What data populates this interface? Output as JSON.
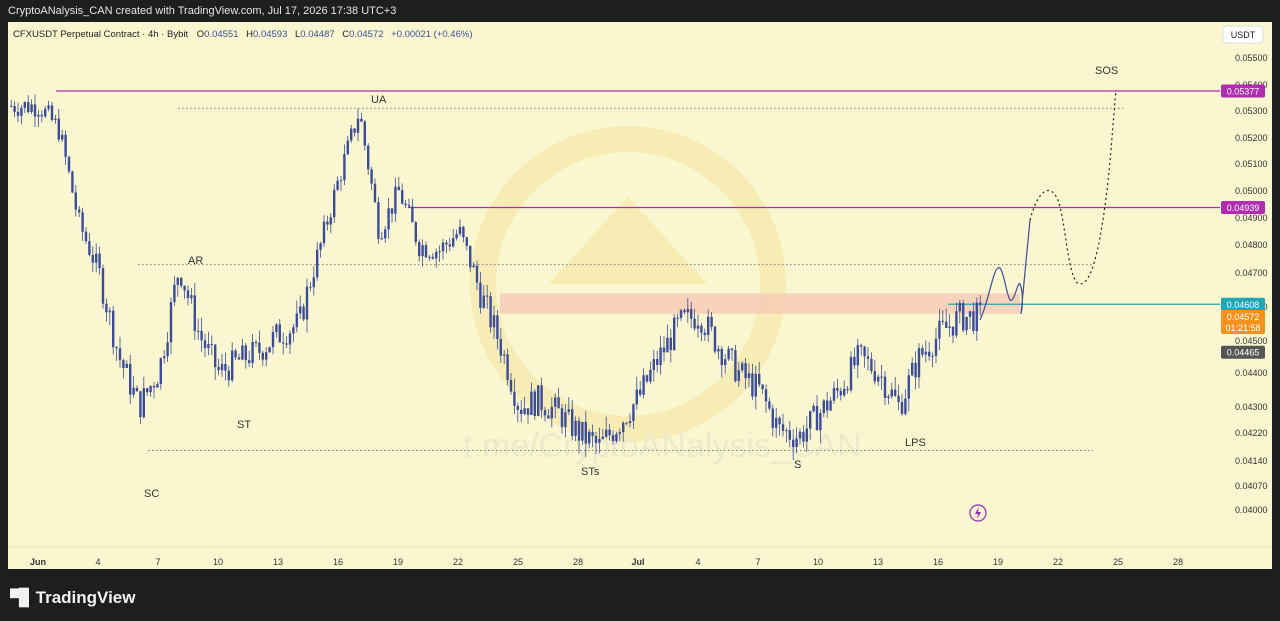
{
  "header": {
    "credit": "CryptoANalysis_CAN created with TradingView.com, Jul 17, 2026 17:38 UTC+3"
  },
  "symbol_line": {
    "name": "CFXUSDT Perpetual Contract · 4h · Bybit",
    "o_label": "O",
    "o_value": "0.04551",
    "h_label": "H",
    "h_value": "0.04593",
    "l_label": "L",
    "l_value": "0.04487",
    "c_label": "C",
    "c_value": "0.04572",
    "change": "+0.00021 (+0.46%)"
  },
  "currency_button": "USDT",
  "watermark": "t.me/CryptoANalysis_CAN",
  "footer": {
    "logo_text": "TradingView"
  },
  "colors": {
    "background": "#faf6d0",
    "candles": "#3b4d9a",
    "magenta_level": "#b02cb0",
    "cyan_level": "#22a6b3",
    "price_tag": "#f5921e",
    "zone": "#f7c7b4"
  },
  "chart_data": {
    "type": "candlestick",
    "x_ticks": [
      "Jun",
      "4",
      "7",
      "10",
      "13",
      "16",
      "19",
      "22",
      "25",
      "28",
      "Jul",
      "4",
      "7",
      "10",
      "13",
      "16",
      "19",
      "22",
      "25",
      "28"
    ],
    "y_ticks": [
      "0.05500",
      "0.05400",
      "0.05300",
      "0.05200",
      "0.05100",
      "0.05000",
      "0.04900",
      "0.04800",
      "0.04700",
      "0.04600",
      "0.04500",
      "0.04400",
      "0.04300",
      "0.04220",
      "0.04140",
      "0.04070",
      "0.04000"
    ],
    "price_tags": [
      {
        "value": "0.05377",
        "color": "#b02cb0"
      },
      {
        "value": "0.04939",
        "color": "#b02cb0"
      },
      {
        "value": "0.04608",
        "color": "#22a6b3"
      },
      {
        "value": "0.04572",
        "color": "#f5921e",
        "sub": "01:21:58"
      },
      {
        "value": "0.04465",
        "color": "#555555"
      }
    ],
    "levels": [
      {
        "price": 0.05377,
        "style": "solid",
        "color": "#b02cb0"
      },
      {
        "price": 0.04939,
        "style": "solid",
        "color": "#b02cb0"
      },
      {
        "price": 0.04608,
        "style": "solid",
        "color": "#22a6b3"
      },
      {
        "price": 0.0531,
        "style": "dotted",
        "color": "#777777"
      },
      {
        "price": 0.0473,
        "style": "dotted",
        "color": "#777777"
      },
      {
        "price": 0.0417,
        "style": "dotted",
        "color": "#777777"
      }
    ],
    "zone": {
      "low": 0.0458,
      "high": 0.0464
    },
    "annotations": [
      "SC",
      "AR",
      "ST",
      "UA",
      "STs",
      "S",
      "LPS",
      "SOS"
    ],
    "series": [
      {
        "date": "Jun 1",
        "price": 0.0532
      },
      {
        "date": "Jun 2",
        "price": 0.0523
      },
      {
        "date": "Jun 3",
        "price": 0.0488
      },
      {
        "date": "Jun 4",
        "price": 0.047
      },
      {
        "date": "Jun 5",
        "price": 0.0445
      },
      {
        "date": "Jun 6",
        "price": 0.043
      },
      {
        "date": "Jun 7",
        "price": 0.0441
      },
      {
        "date": "Jun 8",
        "price": 0.0472
      },
      {
        "date": "Jun 9",
        "price": 0.0452
      },
      {
        "date": "Jun 10",
        "price": 0.044
      },
      {
        "date": "Jun 11",
        "price": 0.0444
      },
      {
        "date": "Jun 12",
        "price": 0.0447
      },
      {
        "date": "Jun 13",
        "price": 0.0452
      },
      {
        "date": "Jun 14",
        "price": 0.0455
      },
      {
        "date": "Jun 15",
        "price": 0.0478
      },
      {
        "date": "Jun 16",
        "price": 0.0505
      },
      {
        "date": "Jun 17",
        "price": 0.053
      },
      {
        "date": "Jun 18",
        "price": 0.0485
      },
      {
        "date": "Jun 19",
        "price": 0.05
      },
      {
        "date": "Jun 20",
        "price": 0.048
      },
      {
        "date": "Jun 21",
        "price": 0.0478
      },
      {
        "date": "Jun 22",
        "price": 0.0485
      },
      {
        "date": "Jun 23",
        "price": 0.0465
      },
      {
        "date": "Jun 24",
        "price": 0.045
      },
      {
        "date": "Jun 25",
        "price": 0.043
      },
      {
        "date": "Jun 26",
        "price": 0.0432
      },
      {
        "date": "Jun 27",
        "price": 0.0428
      },
      {
        "date": "Jun 28",
        "price": 0.0422
      },
      {
        "date": "Jun 29",
        "price": 0.0418
      },
      {
        "date": "Jun 30",
        "price": 0.0425
      },
      {
        "date": "Jul 1",
        "price": 0.0433
      },
      {
        "date": "Jul 2",
        "price": 0.0445
      },
      {
        "date": "Jul 3",
        "price": 0.0455
      },
      {
        "date": "Jul 4",
        "price": 0.0458
      },
      {
        "date": "Jul 5",
        "price": 0.0448
      },
      {
        "date": "Jul 6",
        "price": 0.044
      },
      {
        "date": "Jul 7",
        "price": 0.0435
      },
      {
        "date": "Jul 8",
        "price": 0.0423
      },
      {
        "date": "Jul 9",
        "price": 0.0421
      },
      {
        "date": "Jul 10",
        "price": 0.0428
      },
      {
        "date": "Jul 11",
        "price": 0.0435
      },
      {
        "date": "Jul 12",
        "price": 0.0445
      },
      {
        "date": "Jul 13",
        "price": 0.044
      },
      {
        "date": "Jul 14",
        "price": 0.043
      },
      {
        "date": "Jul 15",
        "price": 0.0445
      },
      {
        "date": "Jul 16",
        "price": 0.0452
      },
      {
        "date": "Jul 17",
        "price": 0.0457
      }
    ],
    "projection": [
      {
        "date": "Jul 17",
        "price": 0.0457
      },
      {
        "date": "Jul 18",
        "price": 0.0475
      },
      {
        "date": "Jul 19",
        "price": 0.0462
      },
      {
        "date": "Jul 20",
        "price": 0.0495
      },
      {
        "date": "Jul 21",
        "price": 0.0495
      },
      {
        "date": "Jul 22",
        "price": 0.0473
      },
      {
        "date": "Jul 23",
        "price": 0.0485
      },
      {
        "date": "Jul 24",
        "price": 0.0538
      }
    ]
  }
}
